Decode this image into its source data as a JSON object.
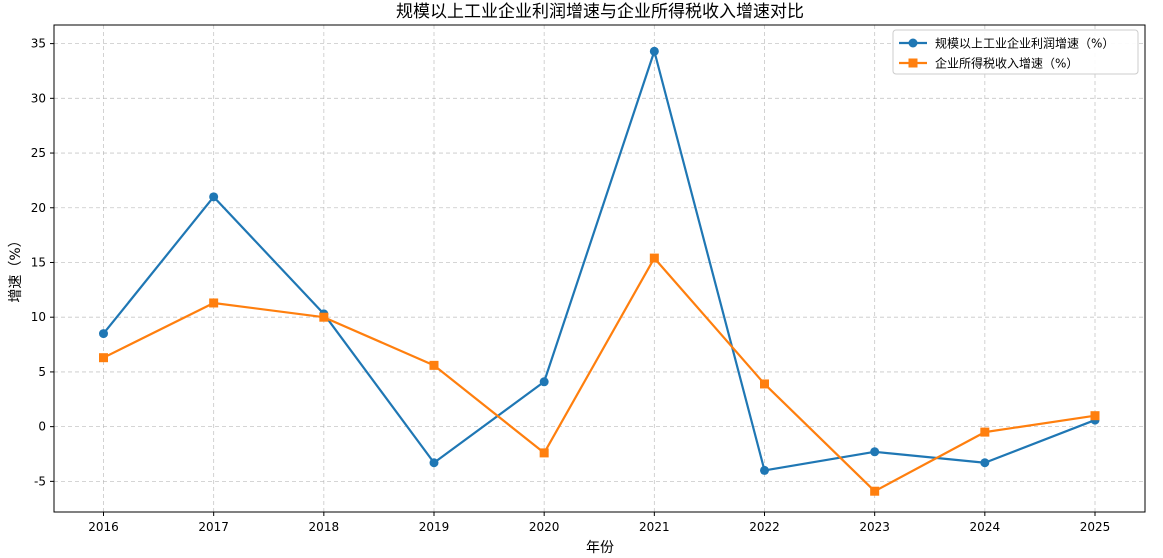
{
  "chart_data": {
    "type": "line",
    "title": "规模以上工业企业利润增速与企业所得税收入增速对比",
    "xlabel": "年份",
    "ylabel": "增速（%）",
    "categories": [
      "2016",
      "2017",
      "2018",
      "2019",
      "2020",
      "2021",
      "2022",
      "2023",
      "2024",
      "2025"
    ],
    "series": [
      {
        "name": "规模以上工业企业利润增速（%）",
        "color": "#1f77b4",
        "marker": "circle",
        "values": [
          8.5,
          21.0,
          10.3,
          -3.3,
          4.1,
          34.3,
          -4.0,
          -2.3,
          -3.3,
          0.6
        ]
      },
      {
        "name": "企业所得税收入增速（%）",
        "color": "#ff7f0e",
        "marker": "square",
        "values": [
          6.3,
          11.3,
          10.0,
          5.6,
          -2.4,
          15.4,
          3.9,
          -5.9,
          -0.5,
          1.0
        ]
      }
    ],
    "yticks": [
      -5,
      0,
      5,
      10,
      15,
      20,
      25,
      30,
      35
    ],
    "ylim": [
      -7.8,
      36.7
    ],
    "grid": true,
    "legend": "top-right"
  }
}
